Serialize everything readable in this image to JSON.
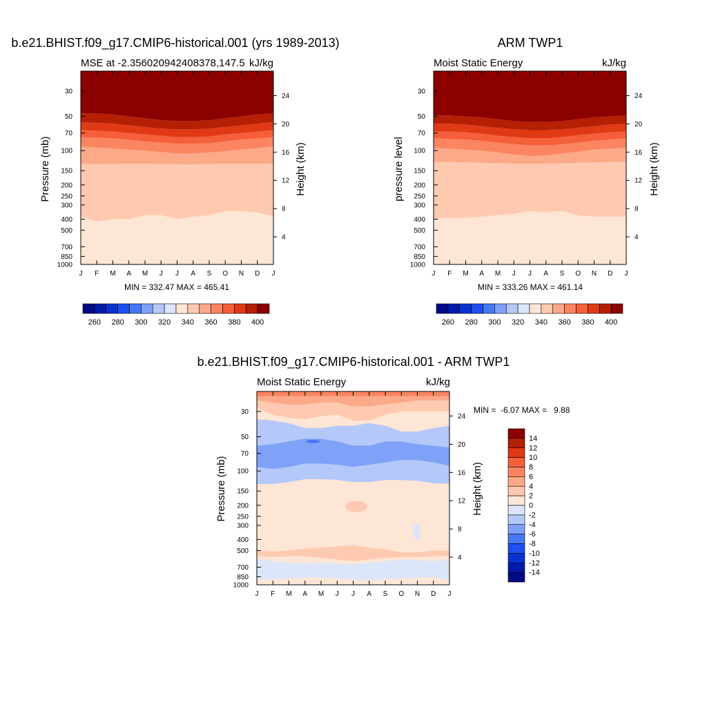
{
  "chart_data": [
    {
      "type": "contour",
      "title": "b.e21.BHIST.f09_g17.CMIP6-historical.001 (yrs 1989-2013)",
      "left_subtitle": "MSE at -2.356020942408378,147.5",
      "right_subtitle": "kJ/kg",
      "ylabel": "Pressure (mb)",
      "ylabel_right": "Height (km)",
      "stats": "MIN = 332.47 MAX = 465.41",
      "min": 332.47,
      "max": 465.41,
      "levels": [
        260,
        270,
        280,
        290,
        300,
        310,
        320,
        330,
        340,
        350,
        360,
        370,
        380,
        390,
        400
      ],
      "colorbar_labels": [
        "260",
        "280",
        "300",
        "320",
        "340",
        "360",
        "380",
        "400"
      ],
      "boundaries": [
        {
          "level": 340,
          "p": [
            380,
            420,
            400,
            400,
            370,
            370,
            400,
            380,
            370,
            340,
            340,
            350,
            380
          ]
        },
        {
          "level": 350,
          "p": [
            130,
            131,
            131,
            130,
            130,
            131,
            132,
            132,
            131,
            130,
            130,
            130,
            130
          ]
        },
        {
          "level": 360,
          "p": [
            92,
            94,
            96,
            98,
            100,
            103,
            106,
            106,
            104,
            101,
            98,
            95,
            92
          ]
        },
        {
          "level": 370,
          "p": [
            76,
            77,
            78,
            80,
            83,
            85,
            87,
            87,
            86,
            83,
            80,
            78,
            76
          ]
        },
        {
          "level": 380,
          "p": [
            66,
            67,
            68,
            70,
            72,
            74,
            76,
            76,
            75,
            72,
            70,
            68,
            66
          ]
        },
        {
          "level": 390,
          "p": [
            56,
            57,
            58,
            60,
            62,
            64,
            65,
            65,
            64,
            62,
            60,
            58,
            56
          ]
        },
        {
          "level": 400,
          "p": [
            47,
            47,
            48,
            50,
            52,
            54,
            55,
            55,
            54,
            52,
            50,
            48,
            47
          ]
        }
      ]
    },
    {
      "type": "contour",
      "title": "ARM TWP1",
      "left_subtitle": "Moist Static Energy",
      "right_subtitle": "kJ/kg",
      "ylabel": "pressure level",
      "ylabel_right": "Height (km)",
      "stats": "MIN = 333.26 MAX = 461.14",
      "min": 333.26,
      "max": 461.14,
      "levels": [
        260,
        270,
        280,
        290,
        300,
        310,
        320,
        330,
        340,
        350,
        360,
        370,
        380,
        390,
        400
      ],
      "colorbar_labels": [
        "260",
        "280",
        "300",
        "320",
        "340",
        "360",
        "380",
        "400"
      ],
      "boundaries": [
        {
          "level": 340,
          "p": [
            400,
            390,
            390,
            380,
            370,
            360,
            340,
            350,
            340,
            370,
            380,
            380,
            380
          ]
        },
        {
          "level": 350,
          "p": [
            125,
            126,
            127,
            128,
            129,
            130,
            130,
            130,
            129,
            128,
            127,
            126,
            125
          ]
        },
        {
          "level": 360,
          "p": [
            95,
            96,
            98,
            100,
            104,
            108,
            112,
            110,
            106,
            102,
            98,
            96,
            95
          ]
        },
        {
          "level": 370,
          "p": [
            78,
            79,
            80,
            82,
            85,
            88,
            90,
            90,
            88,
            85,
            82,
            80,
            78
          ]
        },
        {
          "level": 380,
          "p": [
            68,
            68,
            69,
            71,
            74,
            76,
            78,
            78,
            76,
            73,
            71,
            69,
            68
          ]
        },
        {
          "level": 390,
          "p": [
            58,
            58,
            59,
            61,
            63,
            65,
            66,
            66,
            65,
            63,
            61,
            59,
            58
          ]
        },
        {
          "level": 400,
          "p": [
            49,
            49,
            50,
            51,
            53,
            55,
            56,
            56,
            55,
            53,
            51,
            50,
            49
          ]
        }
      ]
    },
    {
      "type": "contour",
      "title": "b.e21.BHIST.f09_g17.CMIP6-historical.001 - ARM TWP1",
      "left_subtitle": "Moist Static Energy",
      "right_subtitle": "kJ/kg",
      "ylabel": "Pressure (mb)",
      "ylabel_right": "Height (km)",
      "stats": "MIN =  -6.07 MAX =   9.88",
      "min": -6.07,
      "max": 9.88,
      "levels": [
        -14,
        -12,
        -10,
        -8,
        -6,
        -4,
        -2,
        0,
        2,
        4,
        6,
        8,
        10,
        12,
        14
      ],
      "colorbar_labels": [
        "14",
        "12",
        "10",
        "8",
        "6",
        "4",
        "2",
        "0",
        "-2",
        "-4",
        "-6",
        "-8",
        "-10",
        "-12",
        "-14"
      ],
      "regions": [
        {
          "range": "-4 to -2",
          "x": [
            0,
            1,
            2,
            3,
            4,
            5,
            6,
            7,
            8,
            9,
            10,
            11,
            12
          ],
          "top": [
            35,
            36,
            38,
            42,
            42,
            40,
            40,
            38,
            40,
            45,
            45,
            42,
            40
          ],
          "bottom": [
            130,
            130,
            125,
            118,
            118,
            120,
            125,
            125,
            120,
            120,
            122,
            128,
            130
          ]
        },
        {
          "range": "-6 to -4",
          "x": [
            0,
            1,
            2,
            3,
            4,
            5,
            6,
            7,
            8,
            9,
            10,
            11,
            12
          ],
          "top": [
            60,
            58,
            55,
            52,
            52,
            55,
            60,
            60,
            55,
            55,
            58,
            60,
            62
          ],
          "bottom": [
            92,
            96,
            92,
            86,
            86,
            88,
            92,
            88,
            84,
            80,
            80,
            84,
            90
          ]
        },
        {
          "range": "-2 to 0",
          "x": [
            0,
            1,
            2,
            3,
            4,
            5,
            6,
            7,
            8,
            9,
            10,
            11,
            12
          ],
          "top": [
            600,
            620,
            640,
            650,
            640,
            650,
            660,
            640,
            620,
            600,
            610,
            620,
            600
          ],
          "bottom": [
            900,
            900,
            880,
            860,
            860,
            880,
            900,
            920,
            900,
            880,
            860,
            860,
            900
          ]
        },
        {
          "range": "4 to 6",
          "x": [
            0,
            1,
            2,
            3,
            4,
            5,
            6,
            7,
            8,
            9,
            10,
            11,
            12
          ],
          "top": [
            25,
            25,
            25,
            25,
            25,
            25,
            25,
            25,
            25,
            25,
            25,
            25,
            25
          ],
          "bottom": [
            28,
            30,
            32,
            32,
            30,
            30,
            34,
            34,
            30,
            28,
            28,
            28,
            28
          ]
        }
      ]
    }
  ],
  "months": [
    "J",
    "F",
    "M",
    "A",
    "M",
    "J",
    "J",
    "A",
    "S",
    "O",
    "N",
    "D",
    "J"
  ],
  "pressure_ticks": [
    "30",
    "50",
    "70",
    "100",
    "150",
    "200",
    "250",
    "300",
    "400",
    "500",
    "700",
    "850",
    "1000"
  ],
  "height_ticks": [
    "24",
    "20",
    "16",
    "12",
    "8",
    "4"
  ],
  "colors": {
    "neg": [
      "#000a87",
      "#001aaa",
      "#0a32d2",
      "#1e50f0",
      "#4678f5",
      "#7fa1f8",
      "#b4c8fa",
      "#dce6fb"
    ],
    "pos": [
      "#fee6d6",
      "#fdc9b0",
      "#fca98a",
      "#fb8560",
      "#f55f3a",
      "#e03a14",
      "#b51f04",
      "#8b0000"
    ]
  }
}
